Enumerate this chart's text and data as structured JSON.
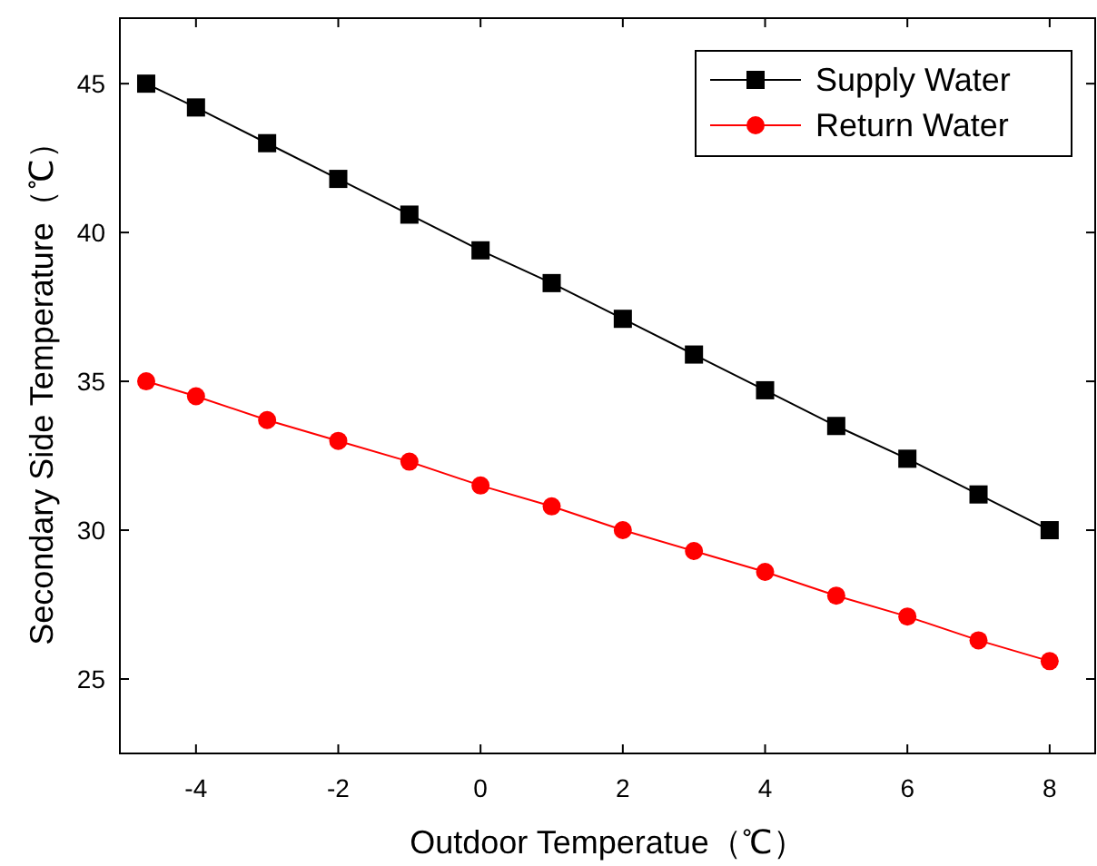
{
  "chart_data": {
    "type": "line",
    "xlabel": "Outdoor Temperatue（℃）",
    "ylabel": "Secondary Side Temperature（℃）",
    "x": [
      -4.7,
      -4,
      -3,
      -2,
      -1,
      0,
      1,
      2,
      3,
      4,
      5,
      6,
      7,
      8
    ],
    "series": [
      {
        "name": "Supply Water",
        "color": "#000000",
        "marker": "square",
        "values": [
          45,
          44.2,
          43.0,
          41.8,
          40.6,
          39.4,
          38.3,
          37.1,
          35.9,
          34.7,
          33.5,
          32.4,
          31.2,
          30.0
        ]
      },
      {
        "name": "Return Water",
        "color": "#ff0000",
        "marker": "circle",
        "values": [
          35,
          34.5,
          33.7,
          33.0,
          32.3,
          31.5,
          30.8,
          30.0,
          29.3,
          28.6,
          27.8,
          27.1,
          26.3,
          25.6
        ]
      }
    ],
    "xlim": [
      -5.07,
      8.64
    ],
    "ylim": [
      22.5,
      47.2
    ],
    "xticks": [
      -4,
      -2,
      0,
      2,
      4,
      6,
      8
    ],
    "yticks": [
      25,
      30,
      35,
      40,
      45
    ],
    "grid": false,
    "legend": "top right",
    "line_style": "solid"
  }
}
